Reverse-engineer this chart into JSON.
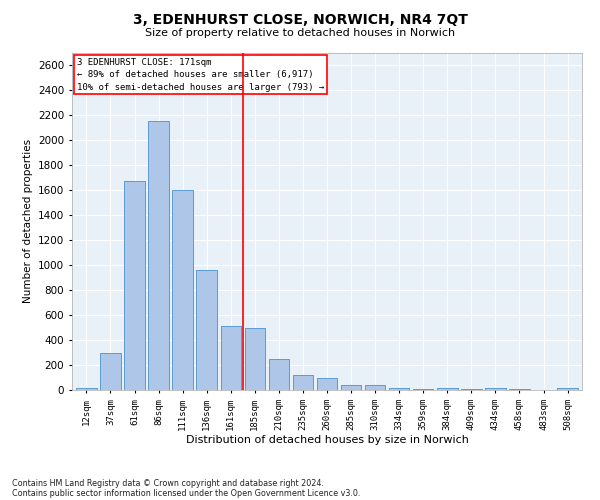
{
  "title": "3, EDENHURST CLOSE, NORWICH, NR4 7QT",
  "subtitle": "Size of property relative to detached houses in Norwich",
  "xlabel": "Distribution of detached houses by size in Norwich",
  "ylabel": "Number of detached properties",
  "categories": [
    "12sqm",
    "37sqm",
    "61sqm",
    "86sqm",
    "111sqm",
    "136sqm",
    "161sqm",
    "185sqm",
    "210sqm",
    "235sqm",
    "260sqm",
    "285sqm",
    "310sqm",
    "334sqm",
    "359sqm",
    "384sqm",
    "409sqm",
    "434sqm",
    "458sqm",
    "483sqm",
    "508sqm"
  ],
  "values": [
    20,
    300,
    1670,
    2150,
    1600,
    960,
    510,
    500,
    245,
    120,
    100,
    40,
    40,
    15,
    5,
    20,
    5,
    20,
    5,
    0,
    20
  ],
  "bar_color": "#aec6e8",
  "bar_edge_color": "#5b9bd5",
  "vline_x": 6.5,
  "annotation_line1": "3 EDENHURST CLOSE: 171sqm",
  "annotation_line2": "← 89% of detached houses are smaller (6,917)",
  "annotation_line3": "10% of semi-detached houses are larger (793) →",
  "ylim": [
    0,
    2700
  ],
  "yticks": [
    0,
    200,
    400,
    600,
    800,
    1000,
    1200,
    1400,
    1600,
    1800,
    2000,
    2200,
    2400,
    2600
  ],
  "footnote1": "Contains HM Land Registry data © Crown copyright and database right 2024.",
  "footnote2": "Contains public sector information licensed under the Open Government Licence v3.0.",
  "plot_bg_color": "#e8f0f8"
}
